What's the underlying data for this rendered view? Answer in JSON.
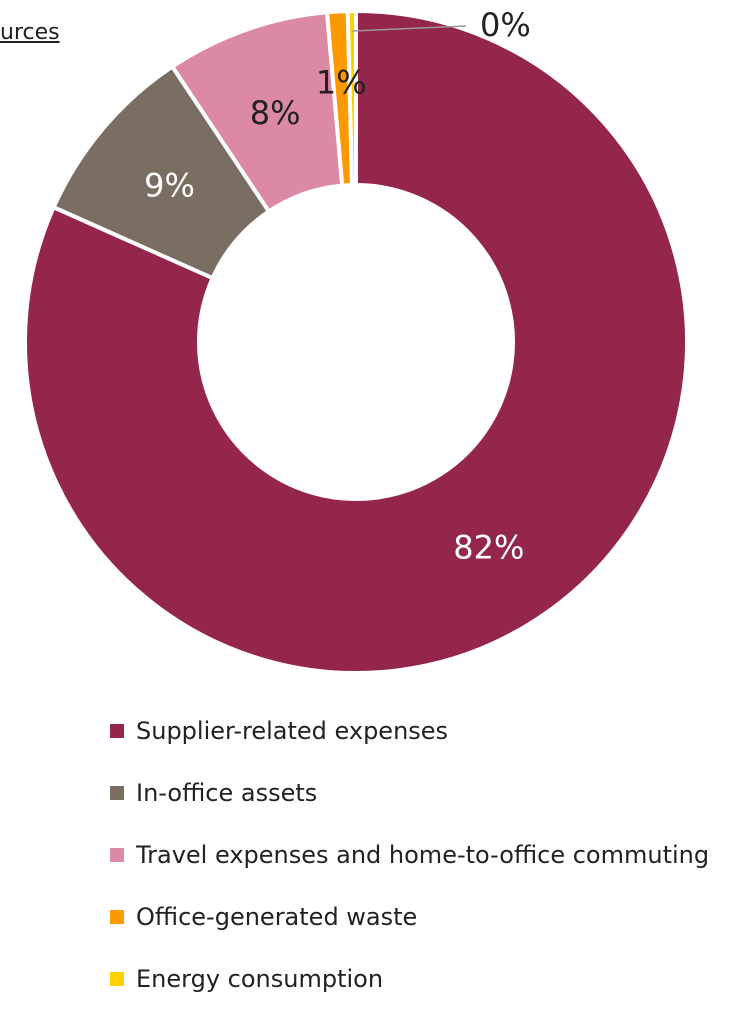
{
  "header": {
    "fragment": "urces"
  },
  "chart_data": {
    "type": "pie",
    "donut": true,
    "legend_position": "bottom",
    "categories": [
      "Supplier-related expenses",
      "In-office assets",
      "Travel expenses and home-to-office commuting",
      "Office-generated waste",
      "Energy consumption"
    ],
    "values": [
      82,
      9,
      8,
      1,
      0
    ],
    "data_labels": [
      "82%",
      "9%",
      "8%",
      "1%",
      "0%"
    ],
    "colors": [
      "#95264b",
      "#7a6e62",
      "#dc89a3",
      "#fb9a00",
      "#ffd100"
    ]
  }
}
